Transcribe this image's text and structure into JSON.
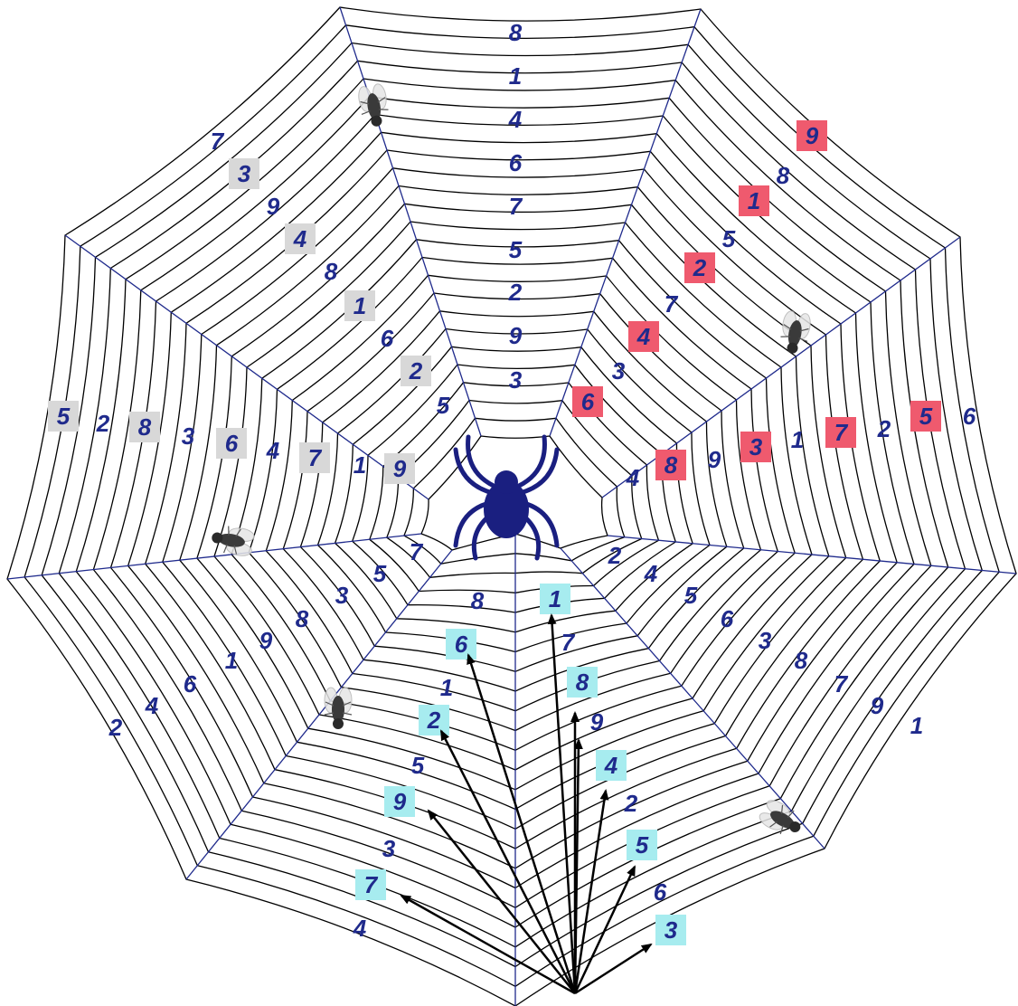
{
  "colors": {
    "web": "#000000",
    "radial": "#1f2a8c",
    "number": "#1f2a8c",
    "spider": "#1a1f80",
    "highlight_gray": "#d8d8d8",
    "highlight_red": "#ef5a6e",
    "highlight_cyan": "#a7ecef",
    "arrow": "#000000",
    "background": "#ffffff"
  },
  "icons": {
    "spider": "spider-icon",
    "fly": "fly-icon"
  },
  "sectors": {
    "top": [
      "8",
      "1",
      "4",
      "6",
      "7",
      "5",
      "2",
      "9",
      "3"
    ],
    "upper_left_diagonal": [
      {
        "t": "7"
      },
      {
        "t": "3",
        "h": true
      },
      {
        "t": "9"
      },
      {
        "t": "4",
        "h": true
      },
      {
        "t": "8"
      },
      {
        "t": "1",
        "h": true
      },
      {
        "t": "6"
      },
      {
        "t": "2",
        "h": true
      },
      {
        "t": "5"
      }
    ],
    "upper_right_diagonal": [
      {
        "t": "9",
        "h": true
      },
      {
        "t": "8"
      },
      {
        "t": "1",
        "h": true
      },
      {
        "t": "5"
      },
      {
        "t": "2",
        "h": true
      },
      {
        "t": "7"
      },
      {
        "t": "4",
        "h": true
      },
      {
        "t": "3"
      },
      {
        "t": "6",
        "h": true
      }
    ],
    "left_row": [
      {
        "t": "5",
        "h": true
      },
      {
        "t": "2"
      },
      {
        "t": "8",
        "h": true
      },
      {
        "t": "3"
      },
      {
        "t": "6",
        "h": true
      },
      {
        "t": "4"
      },
      {
        "t": "7",
        "h": true
      },
      {
        "t": "1"
      },
      {
        "t": "9",
        "h": true
      }
    ],
    "right_row": [
      {
        "t": "4"
      },
      {
        "t": "8",
        "h": true
      },
      {
        "t": "9"
      },
      {
        "t": "3",
        "h": true
      },
      {
        "t": "1"
      },
      {
        "t": "7",
        "h": true
      },
      {
        "t": "2"
      },
      {
        "t": "5",
        "h": true
      },
      {
        "t": "6"
      }
    ],
    "lower_left_diagonal": [
      "7",
      "5",
      "3",
      "8",
      "9",
      "1",
      "6",
      "4",
      "2"
    ],
    "lower_right_diagonal": [
      "2",
      "4",
      "5",
      "6",
      "3",
      "8",
      "7",
      "9",
      "1"
    ],
    "bottom_left_column": [
      {
        "t": "8"
      },
      {
        "t": "6",
        "h": true
      },
      {
        "t": "1"
      },
      {
        "t": "2",
        "h": true
      },
      {
        "t": "5"
      },
      {
        "t": "9",
        "h": true
      },
      {
        "t": "3"
      },
      {
        "t": "7",
        "h": true
      },
      {
        "t": "4"
      }
    ],
    "bottom_right_column": [
      {
        "t": "1",
        "h": true
      },
      {
        "t": "7"
      },
      {
        "t": "8",
        "h": true
      },
      {
        "t": "9"
      },
      {
        "t": "4",
        "h": true
      },
      {
        "t": "2"
      },
      {
        "t": "5",
        "h": true
      },
      {
        "t": "6"
      },
      {
        "t": "3",
        "h": true
      }
    ]
  }
}
